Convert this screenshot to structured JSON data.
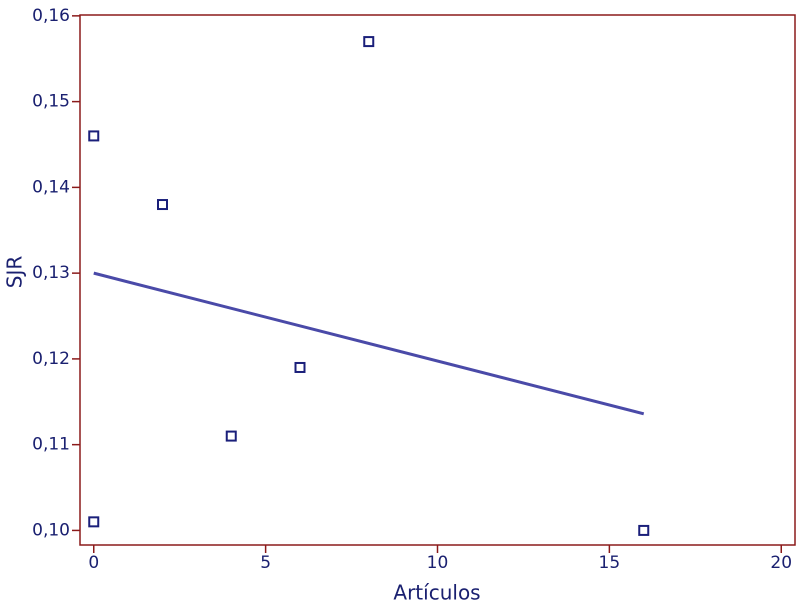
{
  "chart_data": {
    "type": "scatter",
    "x_label": "Artículos",
    "y_label": "SJR",
    "x": [
      0,
      0,
      2,
      4,
      6,
      8,
      16
    ],
    "values": [
      0.146,
      0.101,
      0.138,
      0.111,
      0.119,
      0.157,
      0.1
    ],
    "color": "#1a1f7a",
    "trend_line": {
      "x": [
        0,
        16
      ],
      "values": [
        0.13,
        0.1136
      ],
      "color": "#4a4aa8"
    },
    "xlim": [
      -0.4,
      20.4
    ],
    "xticks": [
      0,
      5,
      10,
      15,
      20
    ],
    "ylim": [
      0.0983,
      0.1601
    ],
    "yticks": [
      {
        "value": 0.1,
        "label": "0,10"
      },
      {
        "value": 0.11,
        "label": "0,11"
      },
      {
        "value": 0.12,
        "label": "0,12"
      },
      {
        "value": 0.13,
        "label": "0,13"
      },
      {
        "value": 0.14,
        "label": "0,14"
      },
      {
        "value": 0.15,
        "label": "0,15"
      },
      {
        "value": 0.16,
        "label": "0,16"
      }
    ],
    "axis_color": "#8b1a1a"
  }
}
